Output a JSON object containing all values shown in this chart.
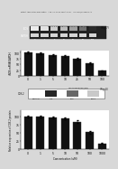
{
  "header_text": "Patent Application Publication   Aug. 26, 2010 Sheet 5 of 7   US 2010/0216839 A1",
  "fig7_label": "(Fig. 7)",
  "fig8_label": "(Fig. 8)",
  "gel_bands": {
    "band1_label": "iNOS",
    "band2_label": "GAPDH",
    "x_labels": [
      "0",
      "1",
      "5",
      "10",
      "25",
      "50",
      "100"
    ],
    "compound_label": "LPS+1,2,3,4-TETRAHYDROISOQUINOLINE (uM)"
  },
  "bar_chart1": {
    "ylabel": "iNOS mRNA/GAPDH",
    "x_labels": [
      "0",
      "1",
      "5",
      "10",
      "25",
      "50",
      "100"
    ],
    "values": [
      100,
      98,
      90,
      85,
      75,
      55,
      22
    ],
    "errors": [
      4,
      3,
      3,
      4,
      4,
      5,
      3
    ],
    "bar_color": "#111111",
    "ylim": [
      0,
      110
    ],
    "yticks": [
      0,
      25,
      50,
      75,
      100
    ]
  },
  "western_blot": {
    "label": "COX-2",
    "x_labels": [
      "Control",
      "LPS",
      "100",
      "1000"
    ],
    "compound_label": "LPS+COMPOUND (uM)",
    "band_intensities": [
      0.0,
      1.0,
      0.7,
      0.25
    ]
  },
  "bar_chart2": {
    "ylabel": "Relative expression of COX-2 protein",
    "xlabel": "Concentration (uM)",
    "x_labels": [
      "0",
      "1",
      "5",
      "10",
      "50",
      "100",
      "1000"
    ],
    "values": [
      100,
      100,
      98,
      95,
      85,
      52,
      18
    ],
    "errors": [
      3,
      2,
      2,
      3,
      4,
      4,
      2
    ],
    "bar_color": "#111111",
    "ylim": [
      0,
      120
    ],
    "yticks": [
      0,
      25,
      50,
      75,
      100
    ]
  },
  "background_color": "#ffffff",
  "page_bg": "#d8d8d8"
}
